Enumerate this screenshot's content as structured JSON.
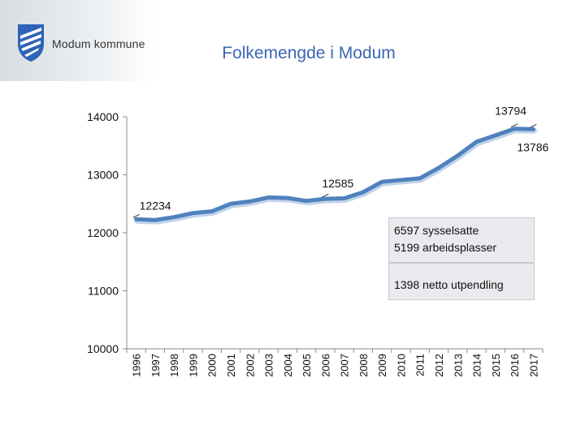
{
  "header": {
    "org_name": "Modum kommune",
    "title": "Folkemengde i Modum"
  },
  "colors": {
    "line": "#4f81bd",
    "line_shadow": "#8eaed6",
    "title": "#3b66b4",
    "box": "#e8eaed"
  },
  "icons": {
    "logo": "coat-of-arms-icon"
  },
  "chart_data": {
    "type": "line",
    "title": "Folkemengde i Modum",
    "xlabel": "",
    "ylabel": "",
    "ylim": [
      10000,
      14000
    ],
    "yticks": [
      10000,
      11000,
      12000,
      13000,
      14000
    ],
    "grid": false,
    "legend": "none",
    "x": [
      "1996",
      "1997",
      "1998",
      "1999",
      "2000",
      "2001",
      "2002",
      "2003",
      "2004",
      "2005",
      "2006",
      "2007",
      "2008",
      "2009",
      "2010",
      "2011",
      "2012",
      "2013",
      "2014",
      "2015",
      "2016",
      "2017"
    ],
    "series": [
      {
        "values": [
          12234,
          12220,
          12270,
          12340,
          12370,
          12500,
          12540,
          12610,
          12600,
          12550,
          12585,
          12595,
          12700,
          12880,
          12910,
          12940,
          13120,
          13330,
          13570,
          13680,
          13794,
          13786
        ]
      }
    ],
    "data_labels": [
      {
        "index": 0,
        "text": "12234"
      },
      {
        "index": 10,
        "text": "12585"
      },
      {
        "index": 20,
        "text": "13794"
      },
      {
        "index": 21,
        "text": "13786"
      }
    ],
    "annotations": [
      {
        "lines": [
          "6597 sysselsatte",
          "5199 arbeidsplasser"
        ]
      },
      {
        "lines": [
          "1398 netto utpendling"
        ]
      }
    ]
  }
}
